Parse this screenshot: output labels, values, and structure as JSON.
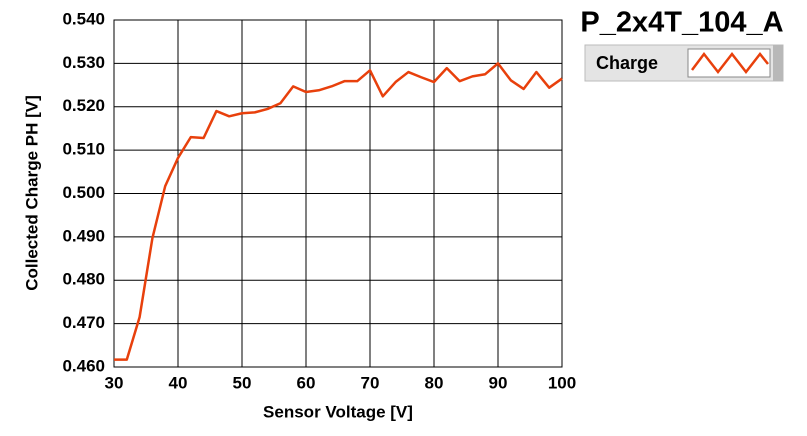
{
  "chart_data": {
    "type": "line",
    "title": "P_2x4T_104_A",
    "x_label": "Sensor Voltage [V]",
    "y_label": "Collected Charge PH [V]",
    "x": [
      30,
      32,
      34,
      36,
      38,
      40,
      42,
      44,
      46,
      48,
      50,
      52,
      54,
      56,
      58,
      60,
      62,
      64,
      66,
      68,
      70,
      72,
      74,
      76,
      78,
      80,
      82,
      84,
      86,
      88,
      90,
      92,
      94,
      96,
      98,
      100
    ],
    "series": [
      {
        "name": "Charge",
        "color": "#e8400c",
        "values": [
          0.4617,
          0.4617,
          0.4715,
          0.4897,
          0.5017,
          0.5082,
          0.513,
          0.5128,
          0.519,
          0.5178,
          0.5185,
          0.5187,
          0.5195,
          0.5208,
          0.5247,
          0.5234,
          0.5238,
          0.5247,
          0.5259,
          0.5259,
          0.5284,
          0.5224,
          0.5257,
          0.528,
          0.5268,
          0.5257,
          0.5289,
          0.5259,
          0.527,
          0.5275,
          0.53,
          0.5261,
          0.5241,
          0.528,
          0.5244,
          0.5265
        ]
      }
    ],
    "xlim": [
      30,
      100
    ],
    "xticks": [
      30,
      40,
      50,
      60,
      70,
      80,
      90,
      100
    ],
    "ylim": [
      0.46,
      0.54
    ],
    "yticks": [
      {
        "value": 0.46,
        "label": "0.460"
      },
      {
        "value": 0.47,
        "label": "0.470"
      },
      {
        "value": 0.48,
        "label": "0.480"
      },
      {
        "value": 0.49,
        "label": "0.490"
      },
      {
        "value": 0.5,
        "label": "0.500"
      },
      {
        "value": 0.51,
        "label": "0.510"
      },
      {
        "value": 0.52,
        "label": "0.520"
      },
      {
        "value": 0.53,
        "label": "0.530"
      },
      {
        "value": 0.54,
        "label": "0.540"
      }
    ],
    "grid": true
  }
}
